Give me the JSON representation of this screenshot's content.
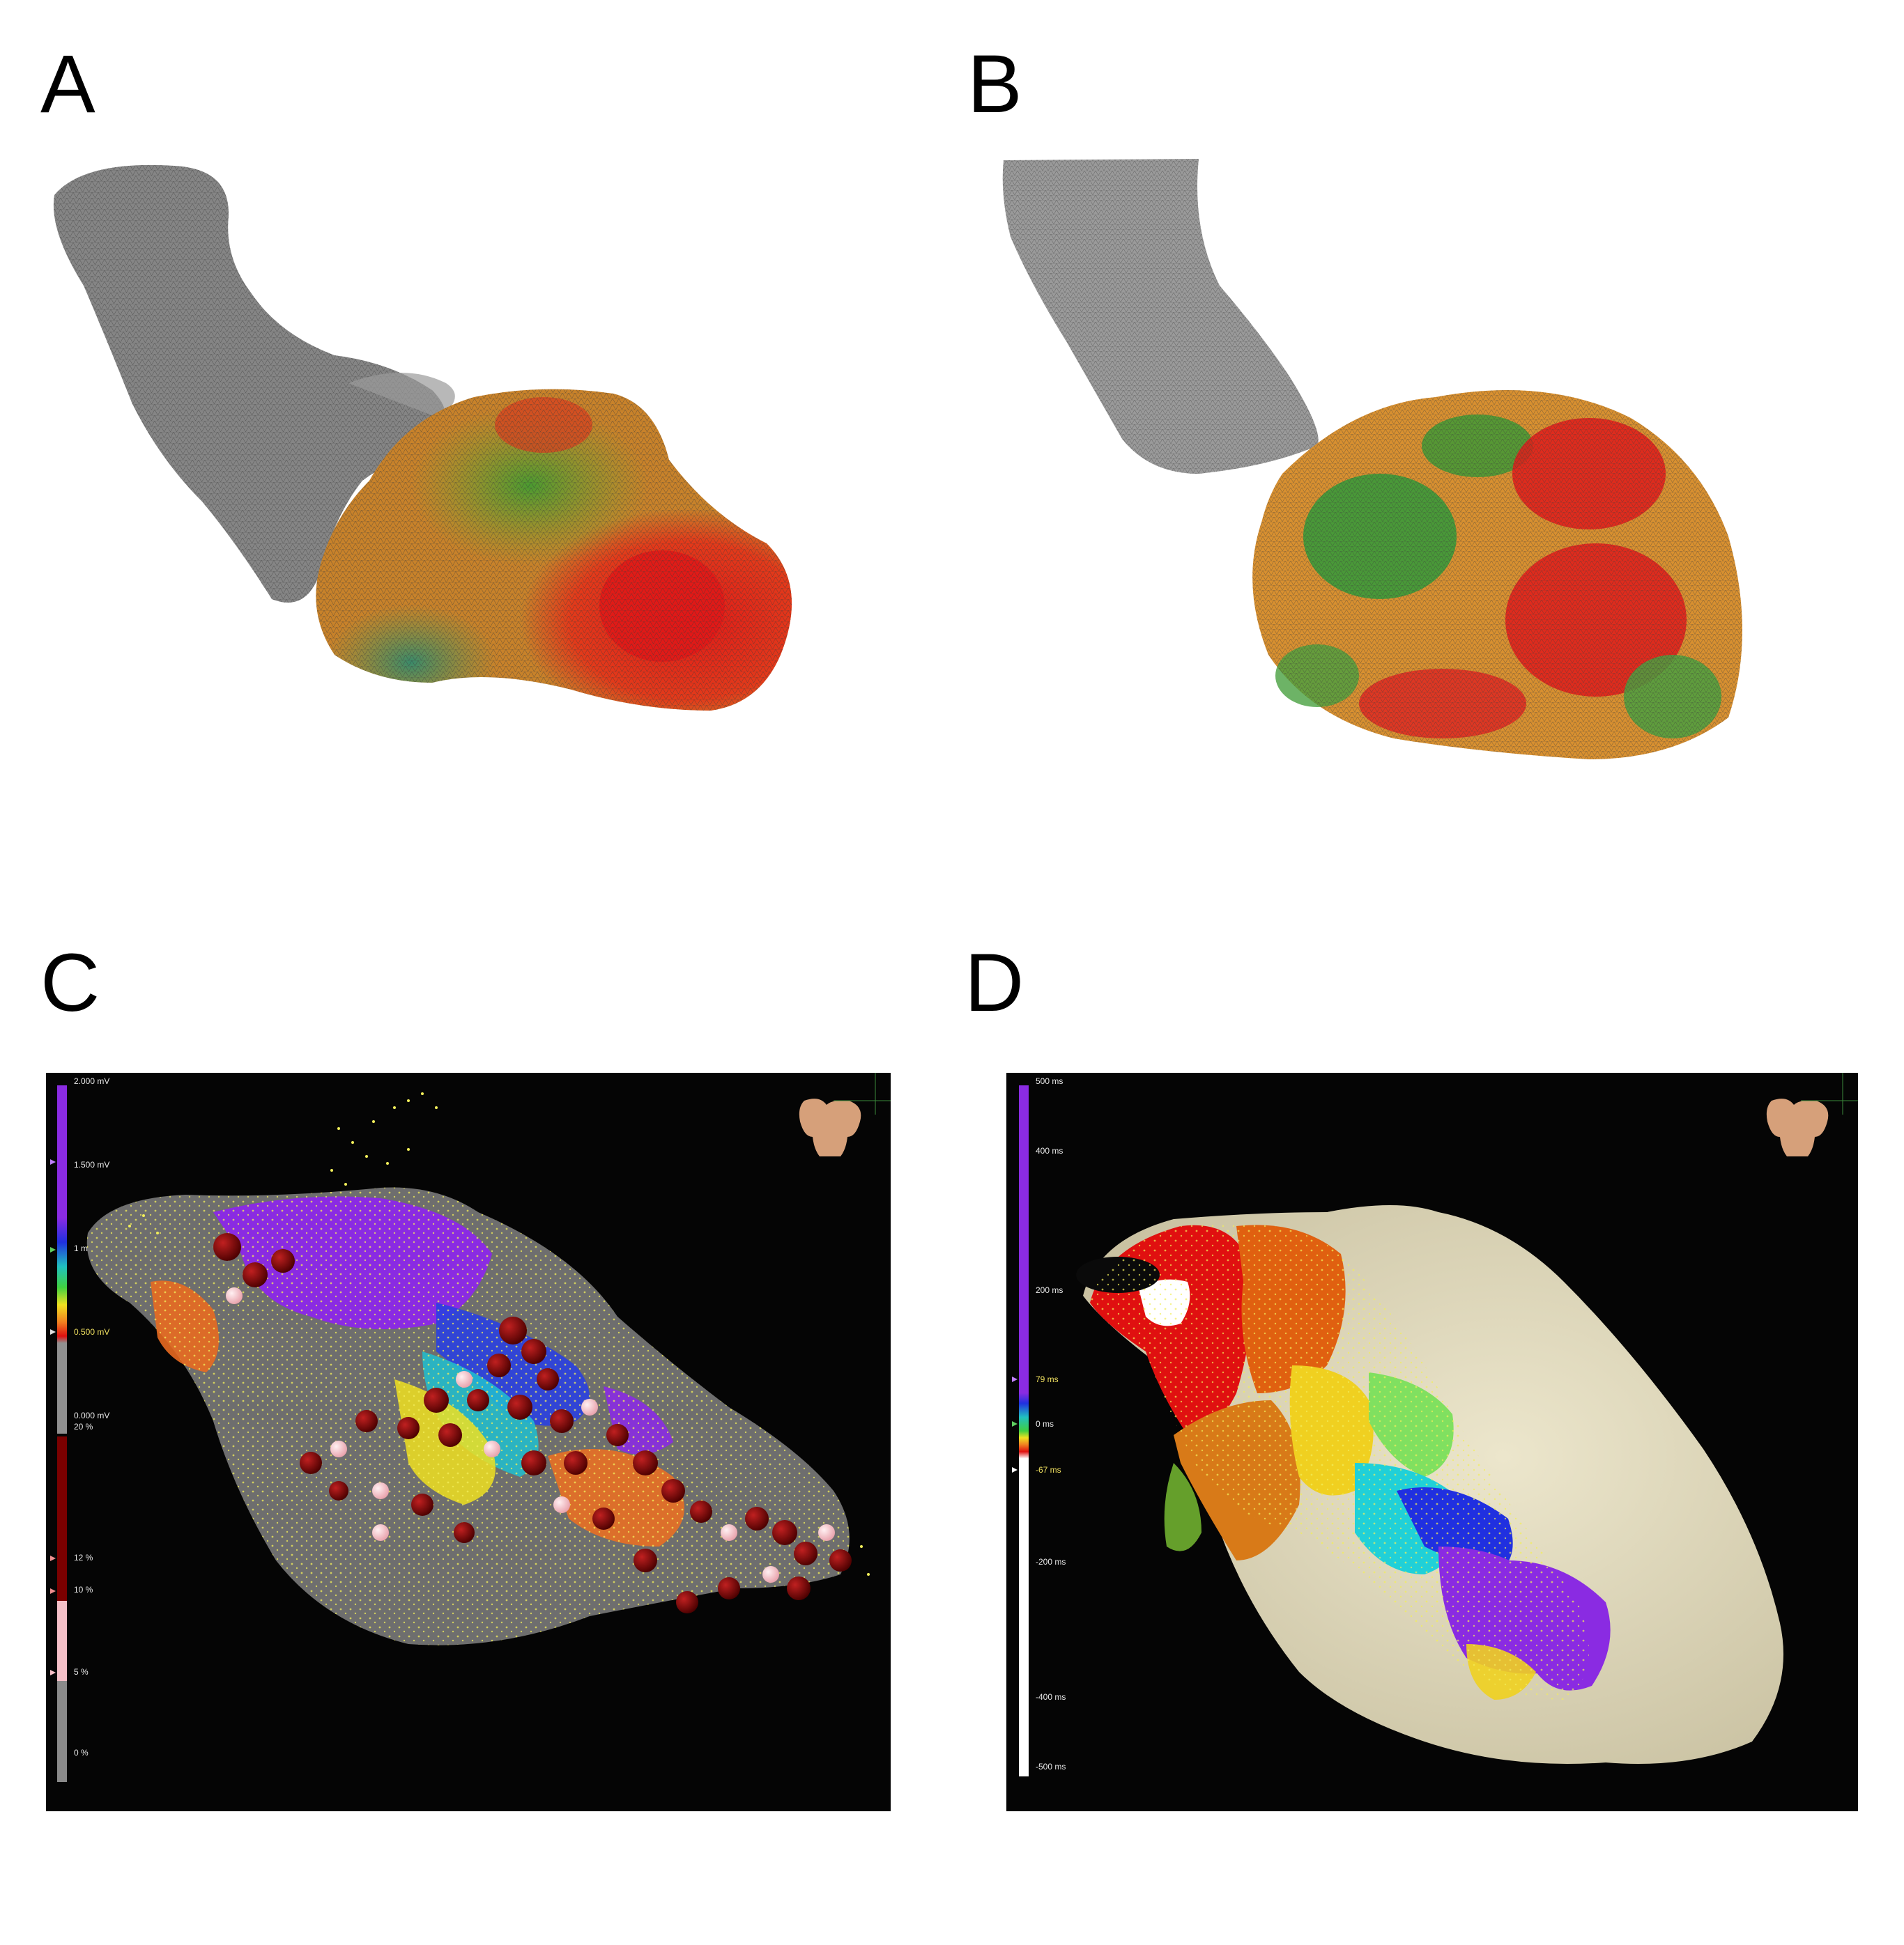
{
  "panels": {
    "a": {
      "letter": "A"
    },
    "b": {
      "letter": "B"
    },
    "c": {
      "letter": "C",
      "voltage_scale": {
        "top": "2.000 mV",
        "upper_mid": "1.500 mV",
        "mid": "1 mV",
        "lower_mid": "0.500 mV",
        "bottom": "0.000 mV"
      },
      "percent_scale": {
        "top": "20 %",
        "p12": "12 %",
        "p10": "10 %",
        "p5": "5 %",
        "bottom": "0 %"
      }
    },
    "d": {
      "letter": "D",
      "time_scale": {
        "t500": "500 ms",
        "t400": "400 ms",
        "t200": "200 ms",
        "t79": "79 ms",
        "t0": "0 ms",
        "tm67": "-67 ms",
        "tm200": "-200 ms",
        "tm400": "-400 ms",
        "tm500": "-500 ms"
      }
    }
  },
  "colors": {
    "mesh_gray": "#8a8a8a",
    "map_red": "#e02020",
    "map_green": "#3aa03a",
    "map_purple": "#8a2be2",
    "scar_gray": "#808080",
    "ablation_dark": "#6a0000",
    "ablation_pink": "#f4b8c0",
    "point_yellow": "#f2ee5a",
    "shell_beige": "#e2dcc0",
    "background_black": "#050505"
  }
}
